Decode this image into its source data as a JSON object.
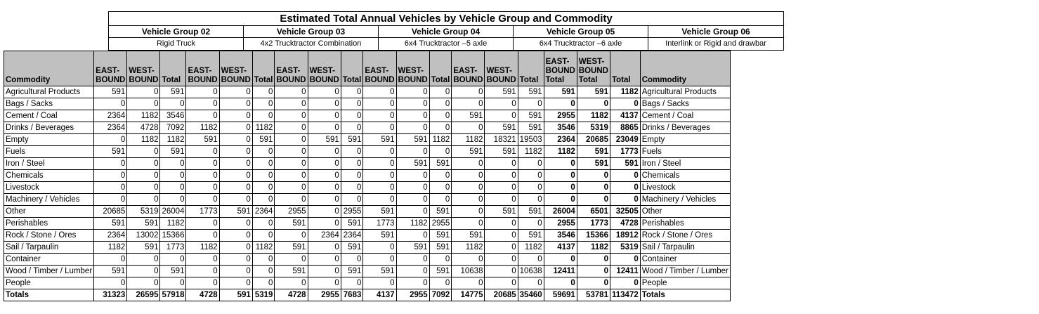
{
  "title": "Estimated Total Annual Vehicles by Vehicle Group and Commodity",
  "groups": [
    {
      "name": "Vehicle Group 02",
      "desc": "Rigid Truck"
    },
    {
      "name": "Vehicle Group 03",
      "desc": "4x2 Trucktractor Combination"
    },
    {
      "name": "Vehicle Group 04",
      "desc": "6x4 Trucktractor –5 axle"
    },
    {
      "name": "Vehicle Group 05",
      "desc": "6x4 Trucktractor –6 axle"
    },
    {
      "name": "Vehicle Group 06",
      "desc": "Interlink or Rigid and drawbar"
    }
  ],
  "headers": {
    "commodity": "Commodity",
    "east": "EAST-BOUND",
    "west": "WEST-BOUND",
    "total": "Total",
    "east_total": "EAST-BOUND Total",
    "west_total": "WEST-BOUND Total",
    "grand_total": "Total",
    "commodity_right": "Commodity"
  },
  "rows": [
    {
      "label": "Agricultural Products",
      "values": [
        591,
        0,
        591,
        0,
        0,
        0,
        0,
        0,
        0,
        0,
        0,
        0,
        0,
        591,
        591
      ],
      "totals": [
        591,
        591,
        1182
      ]
    },
    {
      "label": "Bags / Sacks",
      "values": [
        0,
        0,
        0,
        0,
        0,
        0,
        0,
        0,
        0,
        0,
        0,
        0,
        0,
        0,
        0
      ],
      "totals": [
        0,
        0,
        0
      ]
    },
    {
      "label": "Cement / Coal",
      "values": [
        2364,
        1182,
        3546,
        0,
        0,
        0,
        0,
        0,
        0,
        0,
        0,
        0,
        591,
        0,
        591
      ],
      "totals": [
        2955,
        1182,
        4137
      ]
    },
    {
      "label": "Drinks / Beverages",
      "values": [
        2364,
        4728,
        7092,
        1182,
        0,
        1182,
        0,
        0,
        0,
        0,
        0,
        0,
        0,
        591,
        591
      ],
      "totals": [
        3546,
        5319,
        8865
      ]
    },
    {
      "label": "Empty",
      "values": [
        0,
        1182,
        1182,
        591,
        0,
        591,
        0,
        591,
        591,
        591,
        591,
        1182,
        1182,
        18321,
        19503
      ],
      "totals": [
        2364,
        20685,
        23049
      ]
    },
    {
      "label": "Fuels",
      "values": [
        591,
        0,
        591,
        0,
        0,
        0,
        0,
        0,
        0,
        0,
        0,
        0,
        591,
        591,
        1182
      ],
      "totals": [
        1182,
        591,
        1773
      ]
    },
    {
      "label": "Iron / Steel",
      "values": [
        0,
        0,
        0,
        0,
        0,
        0,
        0,
        0,
        0,
        0,
        591,
        591,
        0,
        0,
        0
      ],
      "totals": [
        0,
        591,
        591
      ]
    },
    {
      "label": "Chemicals",
      "values": [
        0,
        0,
        0,
        0,
        0,
        0,
        0,
        0,
        0,
        0,
        0,
        0,
        0,
        0,
        0
      ],
      "totals": [
        0,
        0,
        0
      ]
    },
    {
      "label": "Livestock",
      "values": [
        0,
        0,
        0,
        0,
        0,
        0,
        0,
        0,
        0,
        0,
        0,
        0,
        0,
        0,
        0
      ],
      "totals": [
        0,
        0,
        0
      ]
    },
    {
      "label": "Machinery / Vehicles",
      "values": [
        0,
        0,
        0,
        0,
        0,
        0,
        0,
        0,
        0,
        0,
        0,
        0,
        0,
        0,
        0
      ],
      "totals": [
        0,
        0,
        0
      ]
    },
    {
      "label": "Other",
      "values": [
        20685,
        5319,
        26004,
        1773,
        591,
        2364,
        2955,
        0,
        2955,
        591,
        0,
        591,
        0,
        591,
        591
      ],
      "totals": [
        26004,
        6501,
        32505
      ]
    },
    {
      "label": "Perishables",
      "values": [
        591,
        591,
        1182,
        0,
        0,
        0,
        591,
        0,
        591,
        1773,
        1182,
        2955,
        0,
        0,
        0
      ],
      "totals": [
        2955,
        1773,
        4728
      ]
    },
    {
      "label": "Rock / Stone / Ores",
      "values": [
        2364,
        13002,
        15366,
        0,
        0,
        0,
        0,
        2364,
        2364,
        591,
        0,
        591,
        591,
        0,
        591
      ],
      "totals": [
        3546,
        15366,
        18912
      ]
    },
    {
      "label": "Sail / Tarpaulin",
      "values": [
        1182,
        591,
        1773,
        1182,
        0,
        1182,
        591,
        0,
        591,
        0,
        591,
        591,
        1182,
        0,
        1182
      ],
      "totals": [
        4137,
        1182,
        5319
      ]
    },
    {
      "label": "Container",
      "values": [
        0,
        0,
        0,
        0,
        0,
        0,
        0,
        0,
        0,
        0,
        0,
        0,
        0,
        0,
        0
      ],
      "totals": [
        0,
        0,
        0
      ]
    },
    {
      "label": "Wood / Timber / Lumber",
      "values": [
        591,
        0,
        591,
        0,
        0,
        0,
        591,
        0,
        591,
        591,
        0,
        591,
        10638,
        0,
        10638
      ],
      "totals": [
        12411,
        0,
        12411
      ]
    },
    {
      "label": "People",
      "values": [
        0,
        0,
        0,
        0,
        0,
        0,
        0,
        0,
        0,
        0,
        0,
        0,
        0,
        0,
        0
      ],
      "totals": [
        0,
        0,
        0
      ]
    },
    {
      "label": "Totals",
      "values": [
        31323,
        26595,
        57918,
        4728,
        591,
        5319,
        4728,
        2955,
        7683,
        4137,
        2955,
        7092,
        14775,
        20685,
        35460
      ],
      "totals": [
        59691,
        53781,
        113472
      ]
    }
  ]
}
